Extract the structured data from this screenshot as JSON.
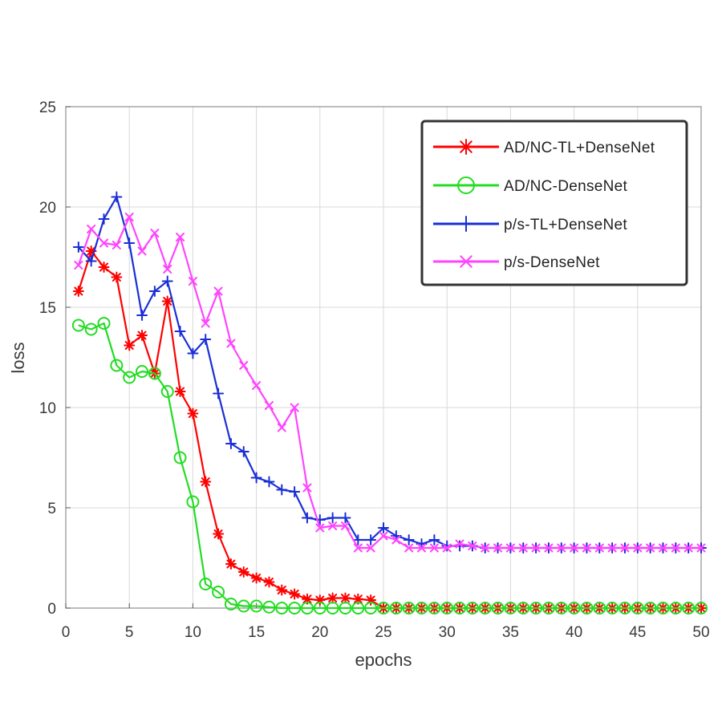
{
  "chart_data": {
    "type": "line",
    "title": "",
    "xlabel": "epochs",
    "ylabel": "loss",
    "xlim": [
      0,
      50
    ],
    "ylim": [
      0,
      25
    ],
    "xticks": [
      0,
      5,
      10,
      15,
      20,
      25,
      30,
      35,
      40,
      45,
      50
    ],
    "yticks": [
      0,
      5,
      10,
      15,
      20,
      25
    ],
    "grid": true,
    "legend_position": "top-right",
    "series": [
      {
        "name": "AD/NC-TL+DenseNet",
        "color": "#ff0000",
        "marker": "asterisk",
        "x": [
          1,
          2,
          3,
          4,
          5,
          6,
          7,
          8,
          9,
          10,
          11,
          12,
          13,
          14,
          15,
          16,
          17,
          18,
          19,
          20,
          21,
          22,
          23,
          24,
          25,
          26,
          27,
          28,
          29,
          30,
          31,
          32,
          33,
          34,
          35,
          36,
          37,
          38,
          39,
          40,
          41,
          42,
          43,
          44,
          45,
          46,
          47,
          48,
          49,
          50
        ],
        "y": [
          15.8,
          17.8,
          17.0,
          16.5,
          13.1,
          13.6,
          11.7,
          15.3,
          10.8,
          9.7,
          6.3,
          3.7,
          2.2,
          1.8,
          1.5,
          1.3,
          0.9,
          0.7,
          0.45,
          0.4,
          0.5,
          0.5,
          0.45,
          0.4,
          0,
          0,
          0,
          0,
          0,
          0,
          0,
          0,
          0,
          0,
          0,
          0,
          0,
          0,
          0,
          0,
          0,
          0,
          0,
          0,
          0,
          0,
          0,
          0,
          0,
          0
        ]
      },
      {
        "name": "AD/NC-DenseNet",
        "color": "#22dd22",
        "marker": "circle",
        "x": [
          1,
          2,
          3,
          4,
          5,
          6,
          7,
          8,
          9,
          10,
          11,
          12,
          13,
          14,
          15,
          16,
          17,
          18,
          19,
          20,
          21,
          22,
          23,
          24,
          25,
          26,
          27,
          28,
          29,
          30,
          31,
          32,
          33,
          34,
          35,
          36,
          37,
          38,
          39,
          40,
          41,
          42,
          43,
          44,
          45,
          46,
          47,
          48,
          49,
          50
        ],
        "y": [
          14.1,
          13.9,
          14.2,
          12.1,
          11.5,
          11.8,
          11.7,
          10.8,
          7.5,
          5.3,
          1.2,
          0.8,
          0.2,
          0.1,
          0.1,
          0.05,
          0,
          0,
          0,
          0,
          0,
          0,
          0,
          0,
          0,
          0,
          0,
          0,
          0,
          0,
          0,
          0,
          0,
          0,
          0,
          0,
          0,
          0,
          0,
          0,
          0,
          0,
          0,
          0,
          0,
          0,
          0,
          0,
          0,
          0
        ]
      },
      {
        "name": "p/s-TL+DenseNet",
        "color": "#1a2fd6",
        "marker": "plus",
        "x": [
          1,
          2,
          3,
          4,
          5,
          6,
          7,
          8,
          9,
          10,
          11,
          12,
          13,
          14,
          15,
          16,
          17,
          18,
          19,
          20,
          21,
          22,
          23,
          24,
          25,
          26,
          27,
          28,
          29,
          30,
          31,
          32,
          33,
          34,
          35,
          36,
          37,
          38,
          39,
          40,
          41,
          42,
          43,
          44,
          45,
          46,
          47,
          48,
          49,
          50
        ],
        "y": [
          18.0,
          17.3,
          19.4,
          20.5,
          18.2,
          14.6,
          15.8,
          16.3,
          13.8,
          12.7,
          13.4,
          10.7,
          8.2,
          7.8,
          6.5,
          6.3,
          5.9,
          5.8,
          4.5,
          4.4,
          4.5,
          4.5,
          3.4,
          3.4,
          4.0,
          3.6,
          3.4,
          3.2,
          3.4,
          3.1,
          3.1,
          3.1,
          3.0,
          3.0,
          3.0,
          3.0,
          3.0,
          3.0,
          3.0,
          3.0,
          3.0,
          3.0,
          3.0,
          3.0,
          3.0,
          3.0,
          3.0,
          3.0,
          3.0,
          3.0
        ]
      },
      {
        "name": "p/s-DenseNet",
        "color": "#ff44ff",
        "marker": "x",
        "x": [
          1,
          2,
          3,
          4,
          5,
          6,
          7,
          8,
          9,
          10,
          11,
          12,
          13,
          14,
          15,
          16,
          17,
          18,
          19,
          20,
          21,
          22,
          23,
          24,
          25,
          26,
          27,
          28,
          29,
          30,
          31,
          32,
          33,
          34,
          35,
          36,
          37,
          38,
          39,
          40,
          41,
          42,
          43,
          44,
          45,
          46,
          47,
          48,
          49,
          50
        ],
        "y": [
          17.1,
          18.9,
          18.2,
          18.1,
          19.5,
          17.8,
          18.7,
          16.9,
          18.5,
          16.3,
          14.2,
          15.8,
          13.2,
          12.1,
          11.1,
          10.1,
          9.0,
          10.0,
          6.0,
          4.0,
          4.1,
          4.1,
          3.0,
          3.0,
          3.6,
          3.4,
          3.0,
          3.0,
          3.0,
          3.0,
          3.2,
          3.1,
          3.0,
          3.0,
          3.0,
          3.0,
          3.0,
          3.0,
          3.0,
          3.0,
          3.0,
          3.0,
          3.0,
          3.0,
          3.0,
          3.0,
          3.0,
          3.0,
          3.0,
          3.0
        ]
      }
    ]
  }
}
